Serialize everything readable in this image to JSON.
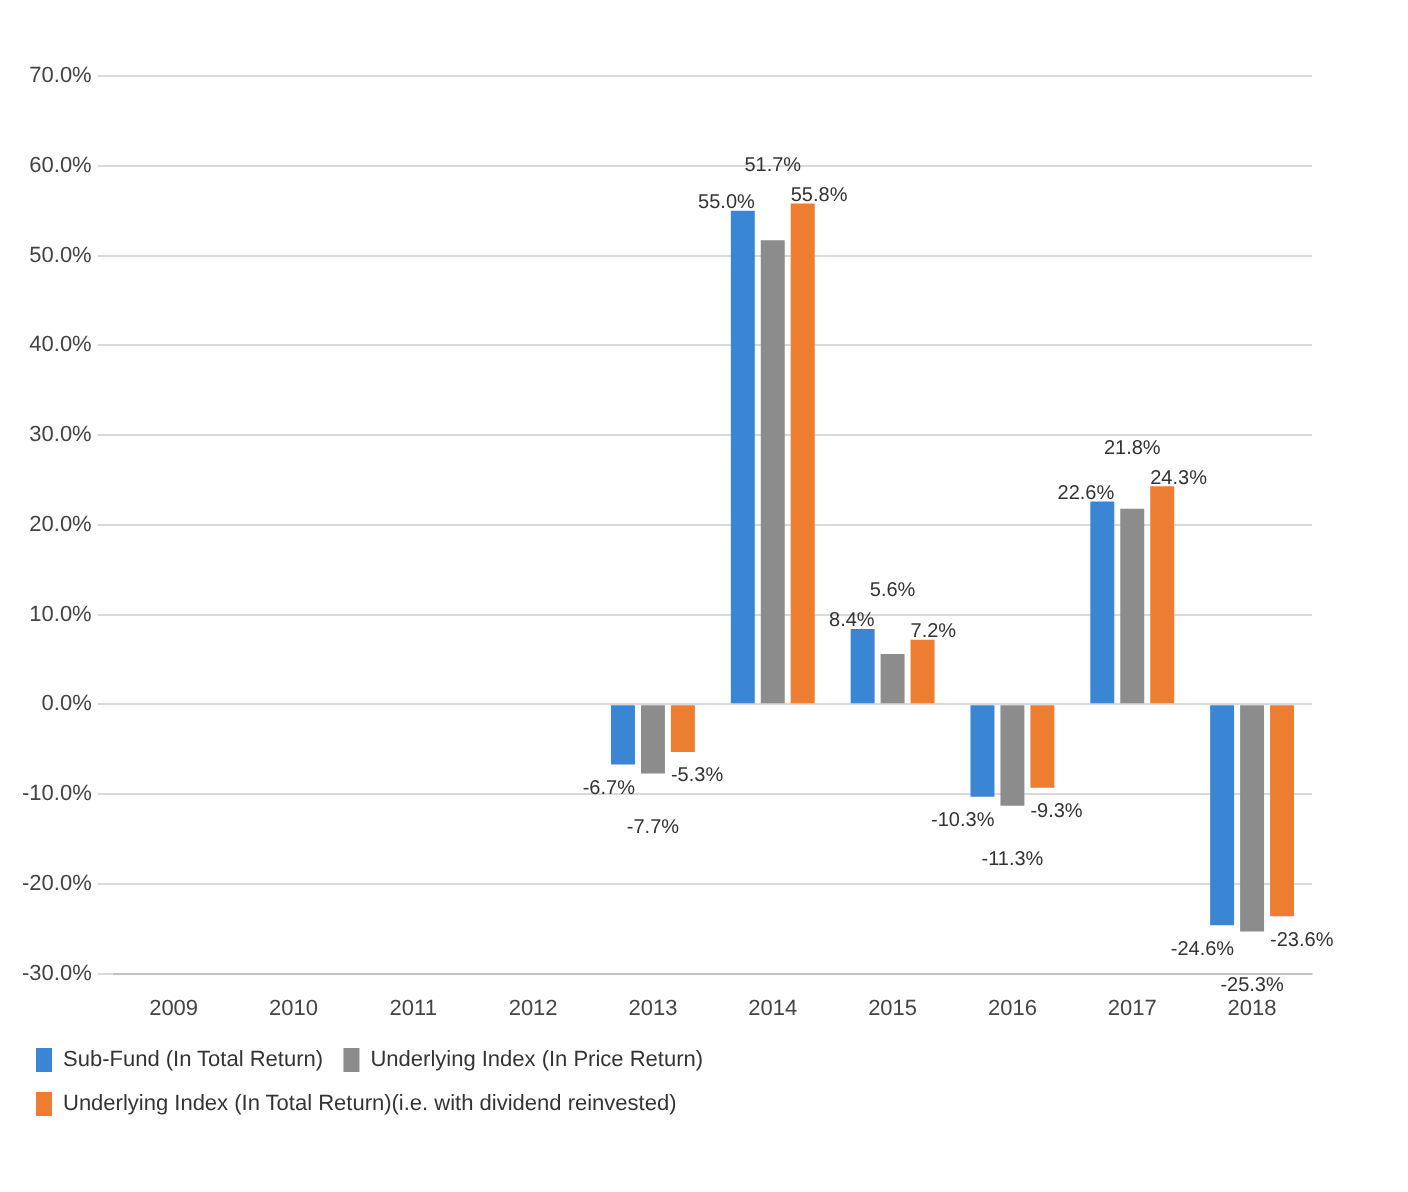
{
  "chart_data": {
    "type": "bar",
    "categories": [
      "2009",
      "2010",
      "2011",
      "2012",
      "2013",
      "2014",
      "2015",
      "2016",
      "2017",
      "2018"
    ],
    "series": [
      {
        "name": "Sub-Fund (In Total Return)",
        "color": "#3a86d4",
        "values": [
          null,
          null,
          null,
          null,
          -6.7,
          55.0,
          8.4,
          -10.3,
          22.6,
          -24.6
        ],
        "value_labels": [
          null,
          null,
          null,
          null,
          "-6.7%",
          "55.0%",
          "8.4%",
          "-10.3%",
          "22.6%",
          "-24.6%"
        ]
      },
      {
        "name": "Underlying Index (In Price Return)",
        "color": "#8c8c8c",
        "values": [
          null,
          null,
          null,
          null,
          -7.7,
          51.7,
          5.6,
          -11.3,
          21.8,
          -25.3
        ],
        "value_labels": [
          null,
          null,
          null,
          null,
          "-7.7%",
          "51.7%",
          "5.6%",
          "-11.3%",
          "21.8%",
          "-25.3%"
        ]
      },
      {
        "name": "Underlying Index (In Total Return)(i.e. with dividend reinvested)",
        "color": "#ed7d31",
        "values": [
          null,
          null,
          null,
          null,
          -5.3,
          55.8,
          7.2,
          -9.3,
          24.3,
          -23.6
        ],
        "value_labels": [
          null,
          null,
          null,
          null,
          "-5.3%",
          "55.8%",
          "7.2%",
          "-9.3%",
          "24.3%",
          "-23.6%"
        ]
      }
    ],
    "ylim": [
      -30,
      70
    ],
    "yticks": [
      {
        "value": -30,
        "label": "-30.0%"
      },
      {
        "value": -20,
        "label": "-20.0%"
      },
      {
        "value": -10,
        "label": "-10.0%"
      },
      {
        "value": 0,
        "label": "0.0%"
      },
      {
        "value": 10,
        "label": "10.0%"
      },
      {
        "value": 20,
        "label": "20.0%"
      },
      {
        "value": 30,
        "label": "30.0%"
      },
      {
        "value": 40,
        "label": "40.0%"
      },
      {
        "value": 50,
        "label": "50.0%"
      },
      {
        "value": 60,
        "label": "60.0%"
      },
      {
        "value": 70,
        "label": "70.0%"
      }
    ],
    "grid": "y",
    "legend": "bottom"
  }
}
